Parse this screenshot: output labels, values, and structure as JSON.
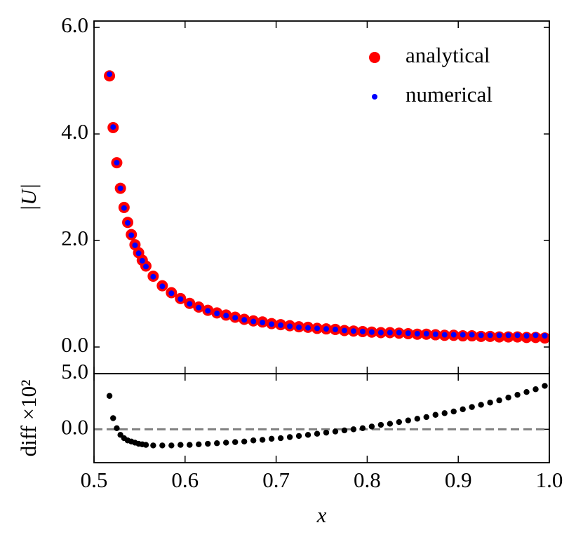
{
  "chart_data": [
    {
      "type": "scatter",
      "ylabel": "|U|",
      "xlim": [
        0.5,
        1.0
      ],
      "ylim": [
        -0.5,
        6.12
      ],
      "yticks": [
        {
          "value": 0,
          "label": "0.0"
        },
        {
          "value": 2,
          "label": "2.0"
        },
        {
          "value": 4,
          "label": "4.0"
        },
        {
          "value": 6,
          "label": "6.0"
        }
      ],
      "legend": "upper right",
      "x": [
        0.517,
        0.521,
        0.525,
        0.529,
        0.533,
        0.537,
        0.541,
        0.545,
        0.549,
        0.553,
        0.557,
        0.565,
        0.575,
        0.585,
        0.595,
        0.605,
        0.615,
        0.625,
        0.635,
        0.645,
        0.655,
        0.665,
        0.675,
        0.685,
        0.695,
        0.705,
        0.715,
        0.725,
        0.735,
        0.745,
        0.755,
        0.765,
        0.775,
        0.785,
        0.795,
        0.805,
        0.815,
        0.825,
        0.835,
        0.845,
        0.855,
        0.865,
        0.875,
        0.885,
        0.895,
        0.905,
        0.915,
        0.925,
        0.935,
        0.945,
        0.955,
        0.965,
        0.975,
        0.985,
        0.995
      ],
      "series": [
        {
          "name": "analytical",
          "color": "#ff0000",
          "values": [
            5.09,
            4.12,
            3.46,
            2.98,
            2.62,
            2.34,
            2.11,
            1.92,
            1.77,
            1.63,
            1.52,
            1.33,
            1.15,
            1.02,
            0.91,
            0.82,
            0.75,
            0.69,
            0.64,
            0.6,
            0.56,
            0.52,
            0.49,
            0.47,
            0.44,
            0.42,
            0.4,
            0.38,
            0.37,
            0.35,
            0.34,
            0.33,
            0.31,
            0.3,
            0.29,
            0.28,
            0.27,
            0.27,
            0.26,
            0.25,
            0.24,
            0.24,
            0.23,
            0.22,
            0.22,
            0.21,
            0.21,
            0.2,
            0.2,
            0.19,
            0.19,
            0.19,
            0.18,
            0.18,
            0.17
          ]
        },
        {
          "name": "numerical",
          "color": "#0000ff",
          "values": [
            5.12,
            4.13,
            3.46,
            2.98,
            2.61,
            2.33,
            2.1,
            1.91,
            1.76,
            1.62,
            1.51,
            1.32,
            1.14,
            1.01,
            0.9,
            0.81,
            0.74,
            0.68,
            0.63,
            0.59,
            0.55,
            0.51,
            0.48,
            0.46,
            0.43,
            0.41,
            0.39,
            0.37,
            0.36,
            0.35,
            0.34,
            0.33,
            0.31,
            0.3,
            0.29,
            0.28,
            0.27,
            0.27,
            0.27,
            0.26,
            0.25,
            0.25,
            0.24,
            0.23,
            0.23,
            0.23,
            0.23,
            0.22,
            0.22,
            0.22,
            0.22,
            0.22,
            0.21,
            0.22,
            0.21
          ]
        }
      ]
    },
    {
      "type": "scatter",
      "xlabel": "x",
      "ylabel": "diff ×10²",
      "xlim": [
        0.5,
        1.0
      ],
      "ylim": [
        -3.0,
        5.0
      ],
      "xticks": [
        0.5,
        0.6,
        0.7,
        0.8,
        0.9,
        {
          "value": 1,
          "label": "1.0"
        }
      ],
      "yticks": [
        {
          "value": 0,
          "label": "0.0"
        },
        {
          "value": 5,
          "label": "5.0"
        }
      ],
      "reference_line": {
        "y": 0,
        "color": "#808080",
        "style": "dashed"
      },
      "color": "#000000",
      "x": [
        0.517,
        0.521,
        0.525,
        0.529,
        0.533,
        0.537,
        0.541,
        0.545,
        0.549,
        0.553,
        0.557,
        0.565,
        0.575,
        0.585,
        0.595,
        0.605,
        0.615,
        0.625,
        0.635,
        0.645,
        0.655,
        0.665,
        0.675,
        0.685,
        0.695,
        0.705,
        0.715,
        0.725,
        0.735,
        0.745,
        0.755,
        0.765,
        0.775,
        0.785,
        0.795,
        0.805,
        0.815,
        0.825,
        0.835,
        0.845,
        0.855,
        0.865,
        0.875,
        0.885,
        0.895,
        0.905,
        0.915,
        0.925,
        0.935,
        0.945,
        0.955,
        0.965,
        0.975,
        0.985,
        0.995
      ],
      "values": [
        3.0,
        1.0,
        0.1,
        -0.5,
        -0.8,
        -1.0,
        -1.1,
        -1.2,
        -1.3,
        -1.35,
        -1.4,
        -1.45,
        -1.45,
        -1.45,
        -1.4,
        -1.4,
        -1.35,
        -1.3,
        -1.25,
        -1.2,
        -1.15,
        -1.1,
        -1.0,
        -0.95,
        -0.85,
        -0.8,
        -0.7,
        -0.6,
        -0.5,
        -0.4,
        -0.3,
        -0.2,
        -0.1,
        0.0,
        0.1,
        0.25,
        0.4,
        0.5,
        0.65,
        0.8,
        0.95,
        1.1,
        1.3,
        1.45,
        1.6,
        1.8,
        2.0,
        2.2,
        2.4,
        2.6,
        2.85,
        3.1,
        3.35,
        3.6,
        3.9
      ]
    }
  ]
}
